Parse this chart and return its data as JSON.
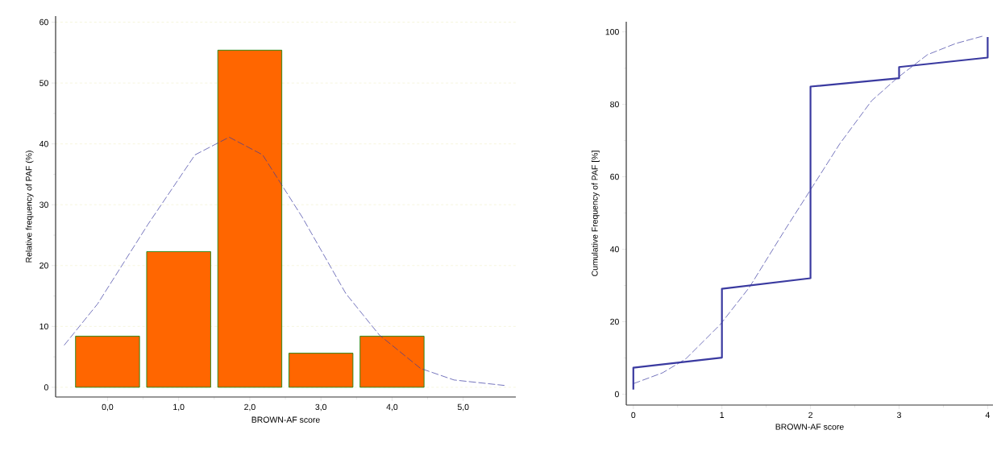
{
  "chart_data": [
    {
      "type": "bar",
      "xlabel": "BROWN-AF score",
      "ylabel": "Relative frequency of PAF (%)",
      "x": [
        0,
        1,
        2,
        3,
        4
      ],
      "xlim": [
        -0.73,
        5.74
      ],
      "ylim": [
        -1.6,
        61
      ],
      "xticks": [
        {
          "value": 0,
          "label": "0,0"
        },
        {
          "value": 1,
          "label": "1,0"
        },
        {
          "value": 2,
          "label": "2,0"
        },
        {
          "value": 3,
          "label": "3,0"
        },
        {
          "value": 4,
          "label": "4,0"
        },
        {
          "value": 5,
          "label": "5,0"
        }
      ],
      "yticks": [
        0,
        10,
        20,
        30,
        40,
        50,
        60
      ],
      "grid": "y",
      "marker": "none",
      "series": [
        {
          "color": "#ff6600",
          "values": [
            8.4,
            22.3,
            55.4,
            5.6,
            8.4
          ]
        },
        {
          "type": "line",
          "color": "#3a3aa0",
          "line_style": "dashed",
          "x": [
            -0.61,
            -0.14,
            0.57,
            1.23,
            1.71,
            2.18,
            2.74,
            3.35,
            3.82,
            4.4,
            4.87,
            5.58
          ],
          "values": [
            6.9,
            13.7,
            26.8,
            38.2,
            41.1,
            38.2,
            27.9,
            15.4,
            8.6,
            3.1,
            1.2,
            0.3
          ]
        }
      ]
    },
    {
      "type": "line",
      "xlabel": "BROWN-AF score",
      "ylabel": "Cumulative Frequency of PAF [%]",
      "xlim": [
        -0.08,
        4.06
      ],
      "ylim": [
        -3,
        102.8
      ],
      "xticks": [
        0,
        1,
        2,
        3,
        4
      ],
      "yticks": [
        0,
        20,
        40,
        60,
        80,
        100
      ],
      "marker": "none",
      "series": [
        {
          "color": "#3a3aa0",
          "line_style": "solid",
          "x": [
            0,
            0,
            1,
            1,
            2,
            2,
            3,
            3,
            4,
            4
          ],
          "values": [
            1.3,
            7.3,
            10.1,
            29.1,
            32.0,
            84.9,
            87.2,
            90.3,
            92.9,
            98.6
          ]
        },
        {
          "color": "#3a3aa0",
          "line_style": "dashed",
          "x": [
            0,
            0.33,
            0.59,
            0.98,
            1.31,
            1.71,
            2.0,
            2.33,
            2.69,
            2.98,
            3.32,
            3.64,
            3.94
          ],
          "values": [
            2.9,
            5.9,
            9.7,
            19.2,
            29.5,
            45.3,
            56.4,
            69.1,
            81.0,
            87.3,
            93.7,
            96.8,
            98.8
          ]
        }
      ]
    }
  ]
}
